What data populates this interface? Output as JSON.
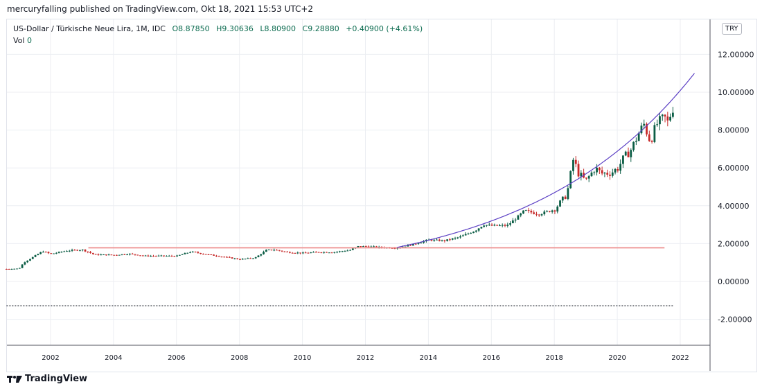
{
  "header": {
    "published": "mercuryfalling published on TradingView.com, Okt 18, 2021 15:53 UTC+2"
  },
  "legend": {
    "symbol": "US-Dollar / Türkische Neue Lira, 1M, IDC",
    "open": "O8.87850",
    "high": "H9.30636",
    "low": "L8.80900",
    "close": "C9.28880",
    "change": "+0.40900 (+4.61%)",
    "vol_label": "Vol",
    "vol_value": "0"
  },
  "currency_button": "TRY",
  "footer": {
    "brand": "TradingView"
  },
  "chart_data": {
    "type": "candlestick",
    "title": "US-Dollar / Türkische Neue Lira, 1M, IDC",
    "ylim": [
      -3,
      13.2
    ],
    "xlim": [
      2000.6,
      2023.0
    ],
    "y_ticks": [
      "12.00000",
      "10.00000",
      "8.00000",
      "6.00000",
      "4.00000",
      "2.00000",
      "0.00000",
      "-2.00000"
    ],
    "y_tick_values": [
      12,
      10,
      8,
      6,
      4,
      2,
      0,
      -2
    ],
    "x_ticks": [
      "2002",
      "2004",
      "2006",
      "2008",
      "2010",
      "2012",
      "2014",
      "2016",
      "2018",
      "2020",
      "2022"
    ],
    "x_tick_values": [
      2002,
      2004,
      2006,
      2008,
      2010,
      2012,
      2014,
      2016,
      2018,
      2020,
      2022
    ],
    "close_anchors": [
      [
        2000.6,
        0.66
      ],
      [
        2001.0,
        0.68
      ],
      [
        2001.15,
        1.0
      ],
      [
        2001.75,
        1.6
      ],
      [
        2002.0,
        1.45
      ],
      [
        2002.5,
        1.62
      ],
      [
        2003.0,
        1.68
      ],
      [
        2003.4,
        1.42
      ],
      [
        2004.0,
        1.4
      ],
      [
        2004.5,
        1.46
      ],
      [
        2005.0,
        1.35
      ],
      [
        2005.5,
        1.35
      ],
      [
        2006.0,
        1.34
      ],
      [
        2006.45,
        1.57
      ],
      [
        2007.0,
        1.42
      ],
      [
        2007.5,
        1.3
      ],
      [
        2008.0,
        1.17
      ],
      [
        2008.5,
        1.25
      ],
      [
        2008.85,
        1.65
      ],
      [
        2009.1,
        1.68
      ],
      [
        2009.5,
        1.55
      ],
      [
        2010.0,
        1.5
      ],
      [
        2010.5,
        1.55
      ],
      [
        2011.0,
        1.55
      ],
      [
        2011.5,
        1.65
      ],
      [
        2011.75,
        1.85
      ],
      [
        2012.0,
        1.85
      ],
      [
        2012.5,
        1.8
      ],
      [
        2013.0,
        1.78
      ],
      [
        2013.5,
        1.95
      ],
      [
        2014.0,
        2.2
      ],
      [
        2014.5,
        2.15
      ],
      [
        2015.0,
        2.35
      ],
      [
        2015.5,
        2.7
      ],
      [
        2015.75,
        3.0
      ],
      [
        2016.0,
        2.95
      ],
      [
        2016.5,
        2.95
      ],
      [
        2016.9,
        3.5
      ],
      [
        2017.05,
        3.75
      ],
      [
        2017.5,
        3.55
      ],
      [
        2018.0,
        3.8
      ],
      [
        2018.4,
        4.6
      ],
      [
        2018.62,
        6.6
      ],
      [
        2018.72,
        5.8
      ],
      [
        2019.0,
        5.3
      ],
      [
        2019.3,
        6.0
      ],
      [
        2019.5,
        5.7
      ],
      [
        2019.8,
        5.75
      ],
      [
        2020.0,
        5.95
      ],
      [
        2020.2,
        6.5
      ],
      [
        2020.45,
        7.0
      ],
      [
        2020.7,
        7.9
      ],
      [
        2020.85,
        8.3
      ],
      [
        2021.05,
        7.4
      ],
      [
        2021.25,
        8.3
      ],
      [
        2021.5,
        8.65
      ],
      [
        2021.6,
        8.4
      ],
      [
        2021.79,
        9.2888
      ]
    ],
    "drawings": {
      "horizontal_line": {
        "value": 1.78,
        "from": 2003.2,
        "to": 2021.5,
        "color": "#ef9a9a"
      },
      "dotted_line": {
        "value": -1.28,
        "from": 2000.6,
        "to": 2021.8
      },
      "trend_curve": {
        "from": [
          2013.0,
          1.8
        ],
        "to": [
          2022.45,
          11.0
        ],
        "color": "#5b3fc4"
      }
    },
    "colors": {
      "up": "#0b5d45",
      "down": "#c62828"
    }
  }
}
